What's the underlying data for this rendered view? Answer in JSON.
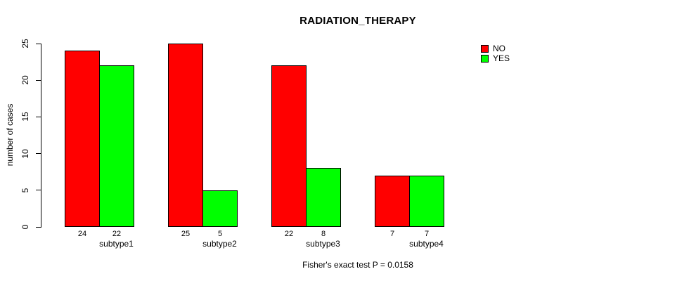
{
  "chart_data": {
    "type": "bar",
    "title": "RADIATION_THERAPY",
    "xlabel": "",
    "ylabel": "number of cases",
    "categories": [
      "subtype1",
      "subtype2",
      "subtype3",
      "subtype4"
    ],
    "series": [
      {
        "name": "NO",
        "color": "#ff0000",
        "values": [
          24,
          25,
          22,
          7
        ]
      },
      {
        "name": "YES",
        "color": "#00ff00",
        "values": [
          22,
          5,
          8,
          7
        ]
      }
    ],
    "ylim": [
      0,
      25
    ],
    "yticks": [
      0,
      5,
      10,
      15,
      20,
      25
    ],
    "grid": false,
    "legend_position": "top-right-outside",
    "bar_value_labels": [
      [
        24,
        22
      ],
      [
        25,
        5
      ],
      [
        22,
        8
      ],
      [
        7,
        7
      ]
    ],
    "annotation": "Fisher's exact test P = 0.0158"
  }
}
